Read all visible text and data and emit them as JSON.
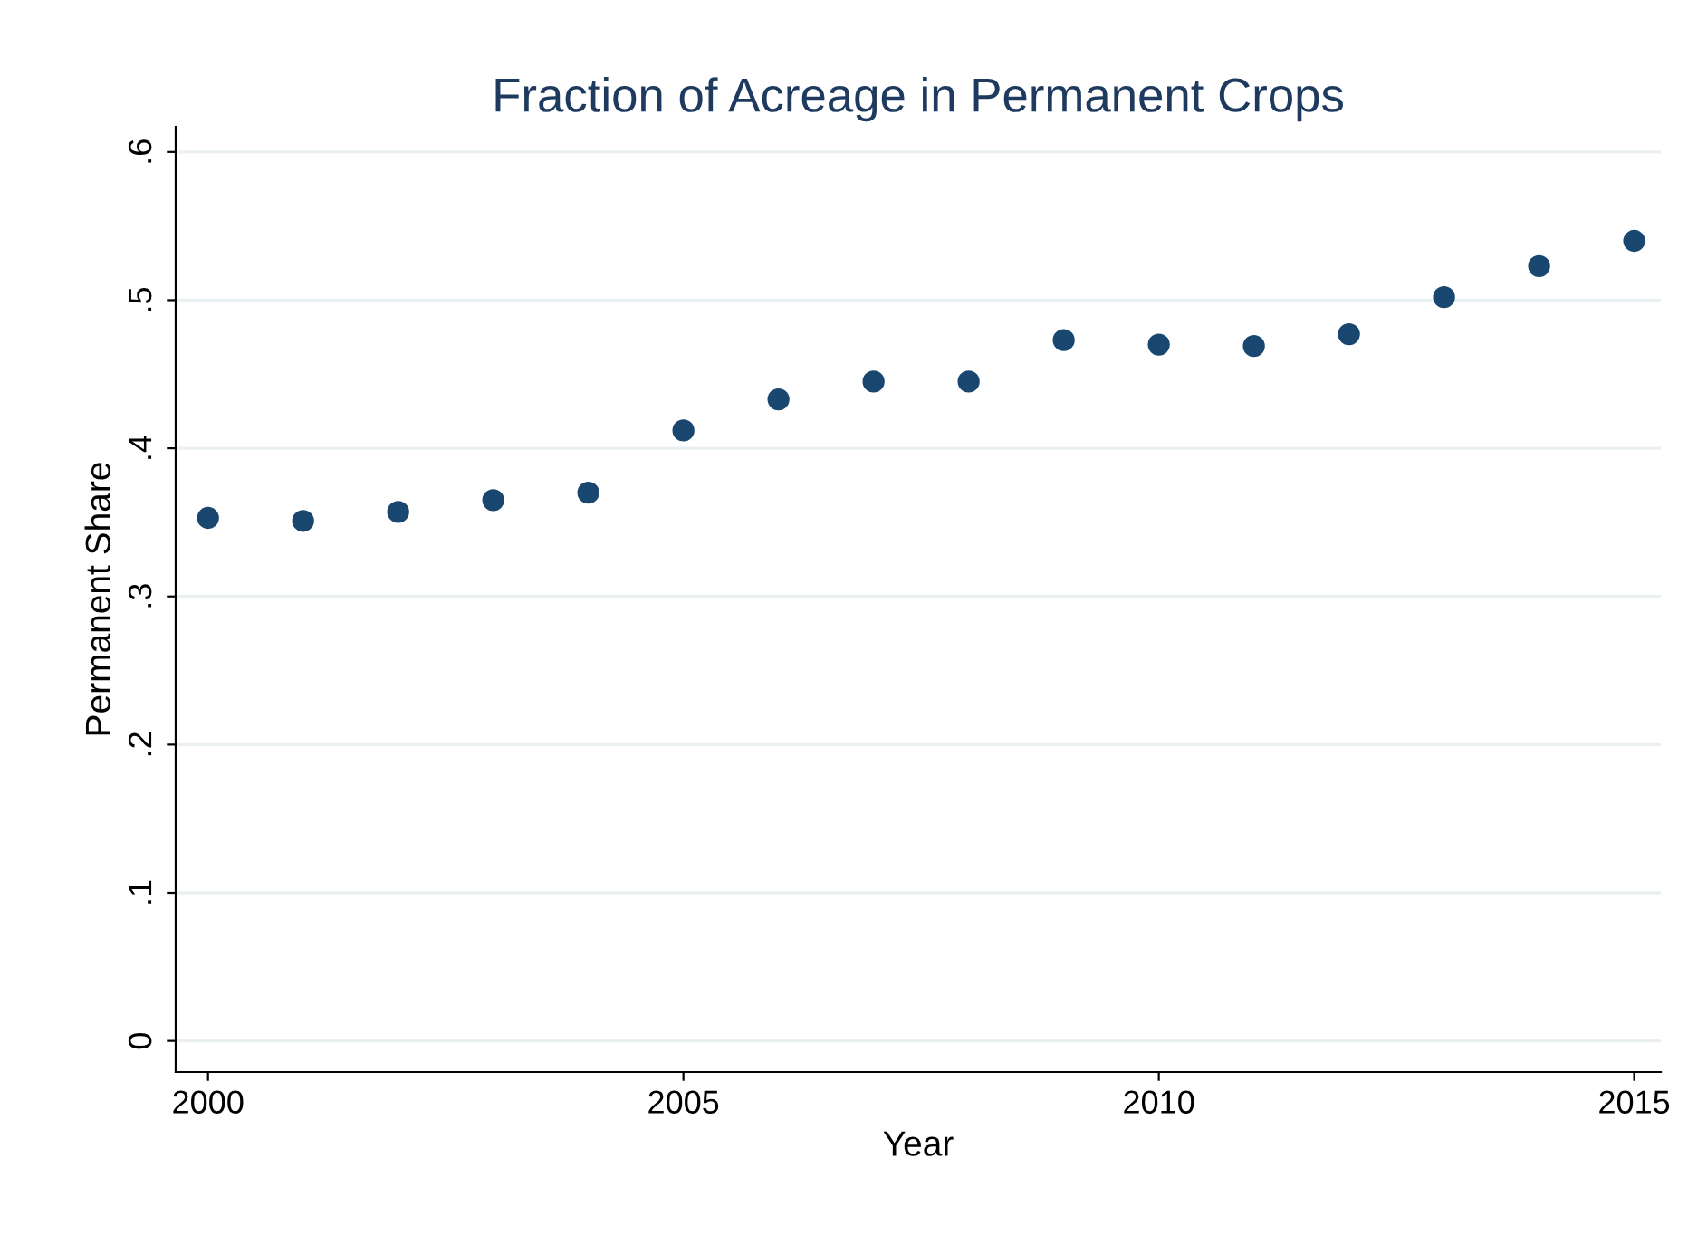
{
  "chart_data": {
    "type": "scatter",
    "title": "Fraction of Acreage in Permanent Crops",
    "xlabel": "Year",
    "ylabel": "Permanent Share",
    "x": [
      2000,
      2001,
      2002,
      2003,
      2004,
      2005,
      2006,
      2007,
      2008,
      2009,
      2010,
      2011,
      2012,
      2013,
      2014,
      2015
    ],
    "series": [
      {
        "color": "#1a476f",
        "values": [
          0.353,
          0.351,
          0.357,
          0.365,
          0.37,
          0.412,
          0.433,
          0.445,
          0.445,
          0.473,
          0.47,
          0.469,
          0.477,
          0.502,
          0.523,
          0.54
        ]
      }
    ],
    "xlim": [
      1999.66,
      2015.28
    ],
    "xticks": [
      2000,
      2005,
      2010,
      2015
    ],
    "ylim": [
      -0.021,
      0.617
    ],
    "yticks": [
      {
        "value": 0,
        "label": "0"
      },
      {
        "value": 0.1,
        "label": ".1"
      },
      {
        "value": 0.2,
        "label": ".2"
      },
      {
        "value": 0.3,
        "label": ".3"
      },
      {
        "value": 0.4,
        "label": ".4"
      },
      {
        "value": 0.5,
        "label": ".5"
      },
      {
        "value": 0.6,
        "label": ".6"
      }
    ],
    "grid": "y",
    "marker": "circle",
    "legend": false
  }
}
